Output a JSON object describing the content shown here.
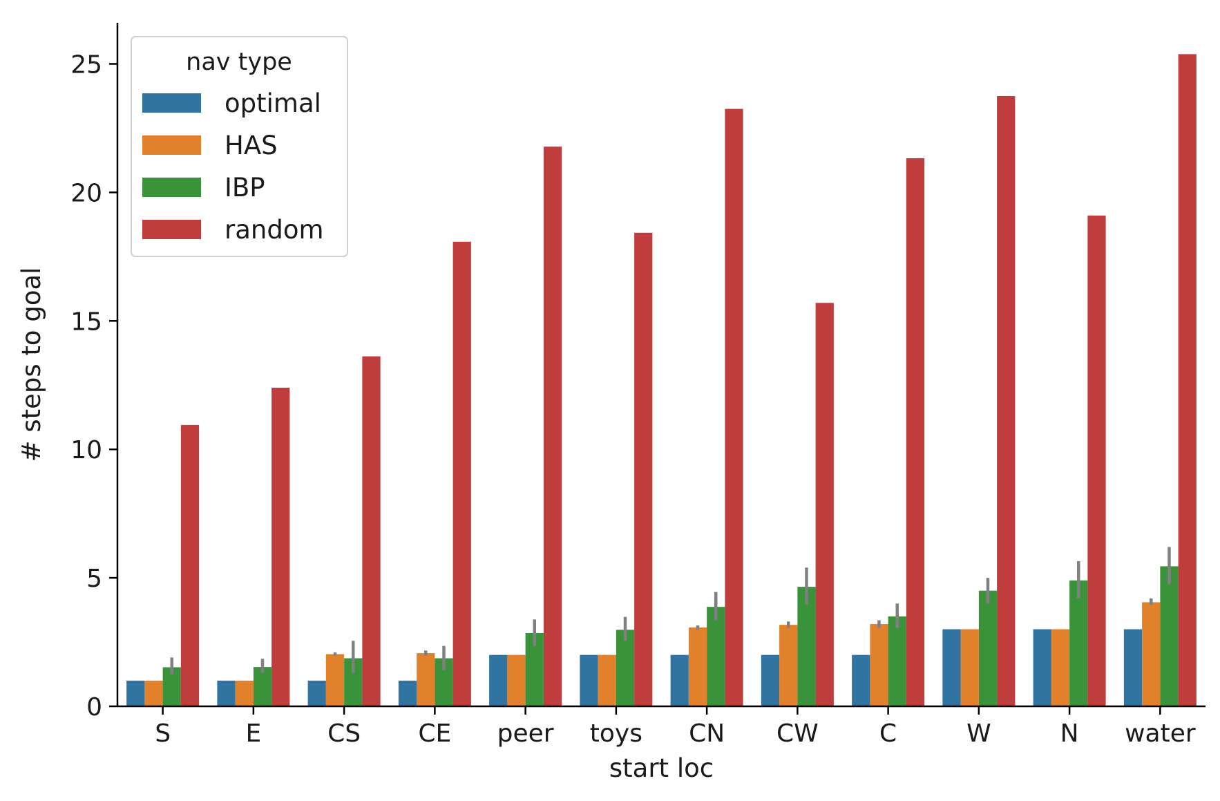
{
  "chart_data": {
    "type": "bar",
    "title": "",
    "xlabel": "start loc",
    "ylabel": "# steps to goal",
    "ylim": [
      0,
      26.6
    ],
    "yticks": [
      0,
      5,
      10,
      15,
      20,
      25
    ],
    "grid": false,
    "categories": [
      "S",
      "E",
      "CS",
      "CE",
      "peer",
      "toys",
      "CN",
      "CW",
      "C",
      "W",
      "N",
      "water"
    ],
    "legend": {
      "title": "nav type",
      "placement": "top-left"
    },
    "series": [
      {
        "name": "optimal",
        "color": "#3274a1",
        "values": [
          1,
          1,
          1,
          1,
          2,
          2,
          2,
          2,
          2,
          3,
          3,
          3
        ],
        "err": [
          null,
          null,
          null,
          null,
          null,
          null,
          null,
          null,
          null,
          null,
          null,
          null
        ]
      },
      {
        "name": "HAS",
        "color": "#e1812c",
        "values": [
          1,
          1,
          2.03,
          2.07,
          2,
          2,
          3.07,
          3.17,
          3.2,
          3,
          3,
          4.05
        ],
        "err": [
          null,
          null,
          [
            1.97,
            2.1
          ],
          [
            1.98,
            2.17
          ],
          null,
          null,
          [
            2.98,
            3.15
          ],
          [
            3.05,
            3.3
          ],
          [
            3.05,
            3.35
          ],
          null,
          null,
          [
            3.95,
            4.2
          ]
        ]
      },
      {
        "name": "IBP",
        "color": "#3a923a",
        "values": [
          1.52,
          1.53,
          1.87,
          1.87,
          2.85,
          2.98,
          3.87,
          4.65,
          3.5,
          4.5,
          4.9,
          5.45
        ],
        "err": [
          [
            1.25,
            1.9
          ],
          [
            1.3,
            1.85
          ],
          [
            1.3,
            2.55
          ],
          [
            1.4,
            2.35
          ],
          [
            2.35,
            3.38
          ],
          [
            2.55,
            3.48
          ],
          [
            3.35,
            4.45
          ],
          [
            3.95,
            5.4
          ],
          [
            3.05,
            4.0
          ],
          [
            4.0,
            5.0
          ],
          [
            4.2,
            5.65
          ],
          [
            4.75,
            6.2
          ]
        ]
      },
      {
        "name": "random",
        "color": "#c03d3e",
        "values": [
          10.95,
          12.4,
          13.62,
          18.08,
          21.78,
          18.43,
          23.25,
          15.7,
          21.33,
          23.75,
          19.1,
          25.38
        ],
        "err": [
          null,
          null,
          null,
          null,
          null,
          null,
          null,
          null,
          null,
          null,
          null,
          null
        ]
      }
    ]
  }
}
